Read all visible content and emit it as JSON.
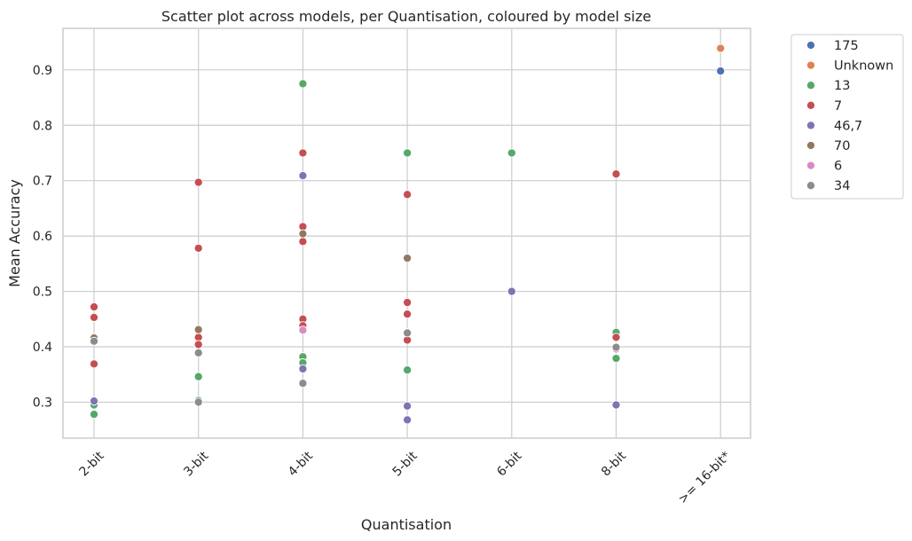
{
  "chart_data": {
    "type": "scatter",
    "title": "Scatter plot across models, per Quantisation, coloured by model size",
    "xlabel": "Quantisation",
    "ylabel": "Mean Accuracy",
    "categories": [
      "2-bit",
      "3-bit",
      "4-bit",
      "5-bit",
      "6-bit",
      "8-bit",
      ">= 16-bit*"
    ],
    "yticks": [
      "0.3",
      "0.4",
      "0.5",
      "0.6",
      "0.7",
      "0.8",
      "0.9"
    ],
    "ylim": [
      0.235,
      0.975
    ],
    "grid": true,
    "legend_position": "outside-top-right",
    "series": [
      {
        "name": "175",
        "color": "#4c72b0",
        "points": [
          [
            ">= 16-bit*",
            0.898
          ]
        ]
      },
      {
        "name": "Unknown",
        "color": "#dd8452",
        "points": [
          [
            ">= 16-bit*",
            0.939
          ]
        ]
      },
      {
        "name": "13",
        "color": "#55a868",
        "points": [
          [
            "2-bit",
            0.295
          ],
          [
            "2-bit",
            0.278
          ],
          [
            "3-bit",
            0.346
          ],
          [
            "3-bit",
            0.303
          ],
          [
            "4-bit",
            0.875
          ],
          [
            "4-bit",
            0.382
          ],
          [
            "4-bit",
            0.371
          ],
          [
            "5-bit",
            0.75
          ],
          [
            "5-bit",
            0.358
          ],
          [
            "6-bit",
            0.75
          ],
          [
            "8-bit",
            0.426
          ],
          [
            "8-bit",
            0.379
          ]
        ]
      },
      {
        "name": "7",
        "color": "#c44e52",
        "points": [
          [
            "2-bit",
            0.472
          ],
          [
            "2-bit",
            0.453
          ],
          [
            "2-bit",
            0.369
          ],
          [
            "3-bit",
            0.697
          ],
          [
            "3-bit",
            0.578
          ],
          [
            "3-bit",
            0.417
          ],
          [
            "3-bit",
            0.404
          ],
          [
            "4-bit",
            0.75
          ],
          [
            "4-bit",
            0.617
          ],
          [
            "4-bit",
            0.59
          ],
          [
            "4-bit",
            0.45
          ],
          [
            "4-bit",
            0.438
          ],
          [
            "5-bit",
            0.675
          ],
          [
            "5-bit",
            0.48
          ],
          [
            "5-bit",
            0.459
          ],
          [
            "5-bit",
            0.412
          ],
          [
            "8-bit",
            0.712
          ],
          [
            "8-bit",
            0.417
          ]
        ]
      },
      {
        "name": "46,7",
        "color": "#8172b3",
        "points": [
          [
            "2-bit",
            0.302
          ],
          [
            "4-bit",
            0.709
          ],
          [
            "4-bit",
            0.36
          ],
          [
            "5-bit",
            0.293
          ],
          [
            "5-bit",
            0.268
          ],
          [
            "6-bit",
            0.5
          ],
          [
            "8-bit",
            0.295
          ]
        ]
      },
      {
        "name": "70",
        "color": "#937860",
        "points": [
          [
            "2-bit",
            0.416
          ],
          [
            "3-bit",
            0.431
          ],
          [
            "4-bit",
            0.604
          ],
          [
            "5-bit",
            0.56
          ],
          [
            "5-bit",
            0.426
          ]
        ]
      },
      {
        "name": "6",
        "color": "#da8bc3",
        "points": [
          [
            "4-bit",
            0.43
          ],
          [
            "8-bit",
            0.396
          ]
        ]
      },
      {
        "name": "34",
        "color": "#8c8c8c",
        "points": [
          [
            "2-bit",
            0.41
          ],
          [
            "3-bit",
            0.389
          ],
          [
            "3-bit",
            0.3
          ],
          [
            "4-bit",
            0.334
          ],
          [
            "5-bit",
            0.425
          ],
          [
            "8-bit",
            0.399
          ]
        ]
      }
    ]
  }
}
